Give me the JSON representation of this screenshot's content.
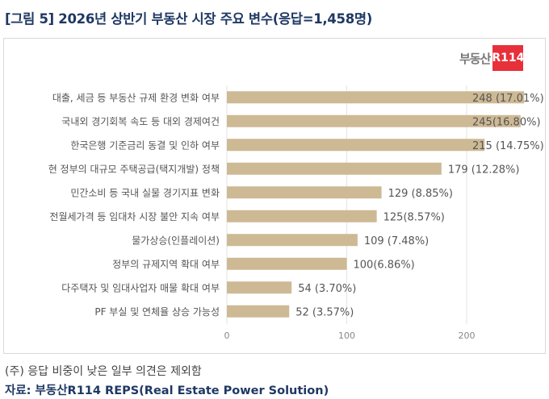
{
  "title": "[그림 5] 2026년 상반기 부동산 시장 주요 변수(응답=1,458명)",
  "logo": {
    "text": "부동산",
    "badge": "R114",
    "badge_color": "#e8303a"
  },
  "chart_data": {
    "type": "bar",
    "orientation": "horizontal",
    "categories": [
      "대출, 세금 등 부동산 규제 환경 변화 여부",
      "국내외 경기회복 속도 등 대외 경제여건",
      "한국은행 기준금리 동결 및 인하 여부",
      "현 정부의 대규모 주택공급(택지개발) 정책",
      "민간소비 등 국내 실물 경기지표 변화",
      "전월세가격 등 임대차 시장 불안 지속 여부",
      "물가상승(인플레이션)",
      "정부의 규제지역 확대 여부",
      "다주택자 및 임대사업자 매물 확대 여부",
      "PF 부실 및 연체율 상승 가능성"
    ],
    "values": [
      248,
      245,
      215,
      179,
      129,
      125,
      109,
      100,
      54,
      52
    ],
    "data_labels": [
      "248 (17.01%)",
      "245(16.80%)",
      "215 (14.75%)",
      "179 (12.28%)",
      "129 (8.85%)",
      "125(8.57%)",
      "109 (7.48%)",
      "100(6.86%)",
      "54 (3.70%)",
      "52 (3.57%)"
    ],
    "xlim": [
      0,
      260
    ],
    "xticks": [
      "0",
      "100",
      "200"
    ],
    "grid": true,
    "bar_color": "#cdb994"
  },
  "footnote": "(주) 응답 비중이 낮은 일부 의견은 제외함",
  "source": "자료: 부동산R114 REPS(Real Estate Power Solution)"
}
